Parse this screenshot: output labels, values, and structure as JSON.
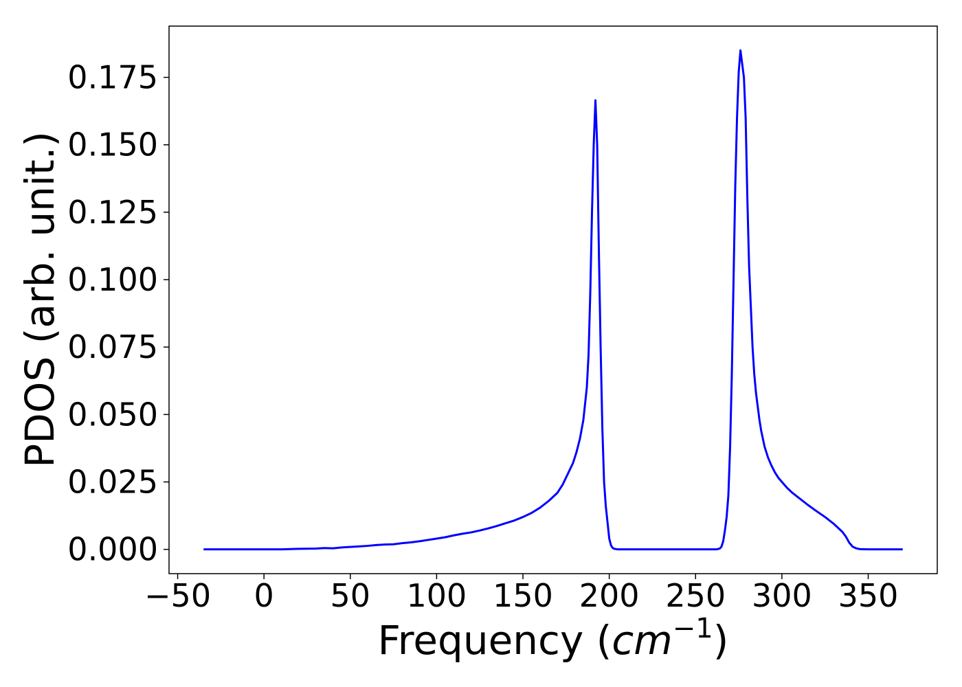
{
  "chart_data": {
    "type": "line",
    "title": "",
    "xlabel": {
      "base": "Frequency (",
      "math": "cm",
      "sup": "−1",
      "close": ")"
    },
    "ylabel": "PDOS (arb. unit.)",
    "xlim": [
      -55,
      390
    ],
    "ylim": [
      -0.009,
      0.194
    ],
    "xticks": [
      -50,
      0,
      50,
      100,
      150,
      200,
      250,
      300,
      350
    ],
    "xtick_labels": [
      "−50",
      "0",
      "50",
      "100",
      "150",
      "200",
      "250",
      "300",
      "350"
    ],
    "yticks": [
      0.0,
      0.025,
      0.05,
      0.075,
      0.1,
      0.125,
      0.15,
      0.175
    ],
    "ytick_labels": [
      "0.000",
      "0.025",
      "0.050",
      "0.075",
      "0.100",
      "0.125",
      "0.150",
      "0.175"
    ],
    "grid": false,
    "legend": "none",
    "series": [
      {
        "color": "#0000ff",
        "x": [
          -35,
          0,
          10,
          20,
          30,
          35,
          40,
          45,
          50,
          55,
          60,
          65,
          70,
          75,
          80,
          85,
          90,
          95,
          100,
          105,
          110,
          115,
          120,
          125,
          130,
          135,
          140,
          145,
          150,
          155,
          160,
          165,
          170,
          173,
          176,
          179,
          181,
          183,
          185,
          187,
          188,
          189,
          190,
          191,
          192,
          193,
          194,
          195,
          196,
          197,
          198,
          199,
          200,
          201,
          202,
          203,
          205,
          210,
          220,
          230,
          240,
          250,
          260,
          262,
          264,
          265,
          266,
          267,
          268,
          269,
          270,
          271,
          272,
          273,
          274,
          275,
          276,
          277,
          278,
          279,
          280,
          281,
          282,
          283,
          284,
          285,
          286,
          287,
          288,
          289,
          290,
          292,
          294,
          296,
          298,
          300,
          303,
          306,
          310,
          315,
          320,
          325,
          330,
          335,
          337,
          339,
          341,
          343,
          345,
          350,
          360,
          370
        ],
        "y": [
          0.0,
          0.0,
          0.0,
          0.0002,
          0.0003,
          0.0005,
          0.0004,
          0.0007,
          0.0009,
          0.0011,
          0.0013,
          0.0016,
          0.0018,
          0.0019,
          0.0023,
          0.0026,
          0.003,
          0.0035,
          0.004,
          0.0045,
          0.0052,
          0.0058,
          0.0063,
          0.007,
          0.0078,
          0.0087,
          0.0097,
          0.0107,
          0.012,
          0.0135,
          0.0155,
          0.018,
          0.021,
          0.024,
          0.028,
          0.032,
          0.036,
          0.041,
          0.048,
          0.06,
          0.072,
          0.095,
          0.125,
          0.15,
          0.1665,
          0.15,
          0.11,
          0.075,
          0.045,
          0.025,
          0.016,
          0.01,
          0.004,
          0.0015,
          0.0005,
          0.0002,
          0.0,
          0.0,
          0.0,
          0.0,
          0.0,
          0.0,
          0.0,
          0.0,
          0.0003,
          0.001,
          0.003,
          0.007,
          0.012,
          0.02,
          0.038,
          0.065,
          0.1,
          0.135,
          0.16,
          0.177,
          0.185,
          0.18,
          0.175,
          0.16,
          0.13,
          0.105,
          0.09,
          0.075,
          0.065,
          0.058,
          0.053,
          0.048,
          0.044,
          0.041,
          0.038,
          0.034,
          0.031,
          0.0285,
          0.0265,
          0.025,
          0.0228,
          0.021,
          0.019,
          0.0165,
          0.0142,
          0.012,
          0.0095,
          0.0065,
          0.0048,
          0.0025,
          0.001,
          0.0004,
          0.0001,
          0.0,
          0.0,
          0.0
        ]
      }
    ]
  }
}
